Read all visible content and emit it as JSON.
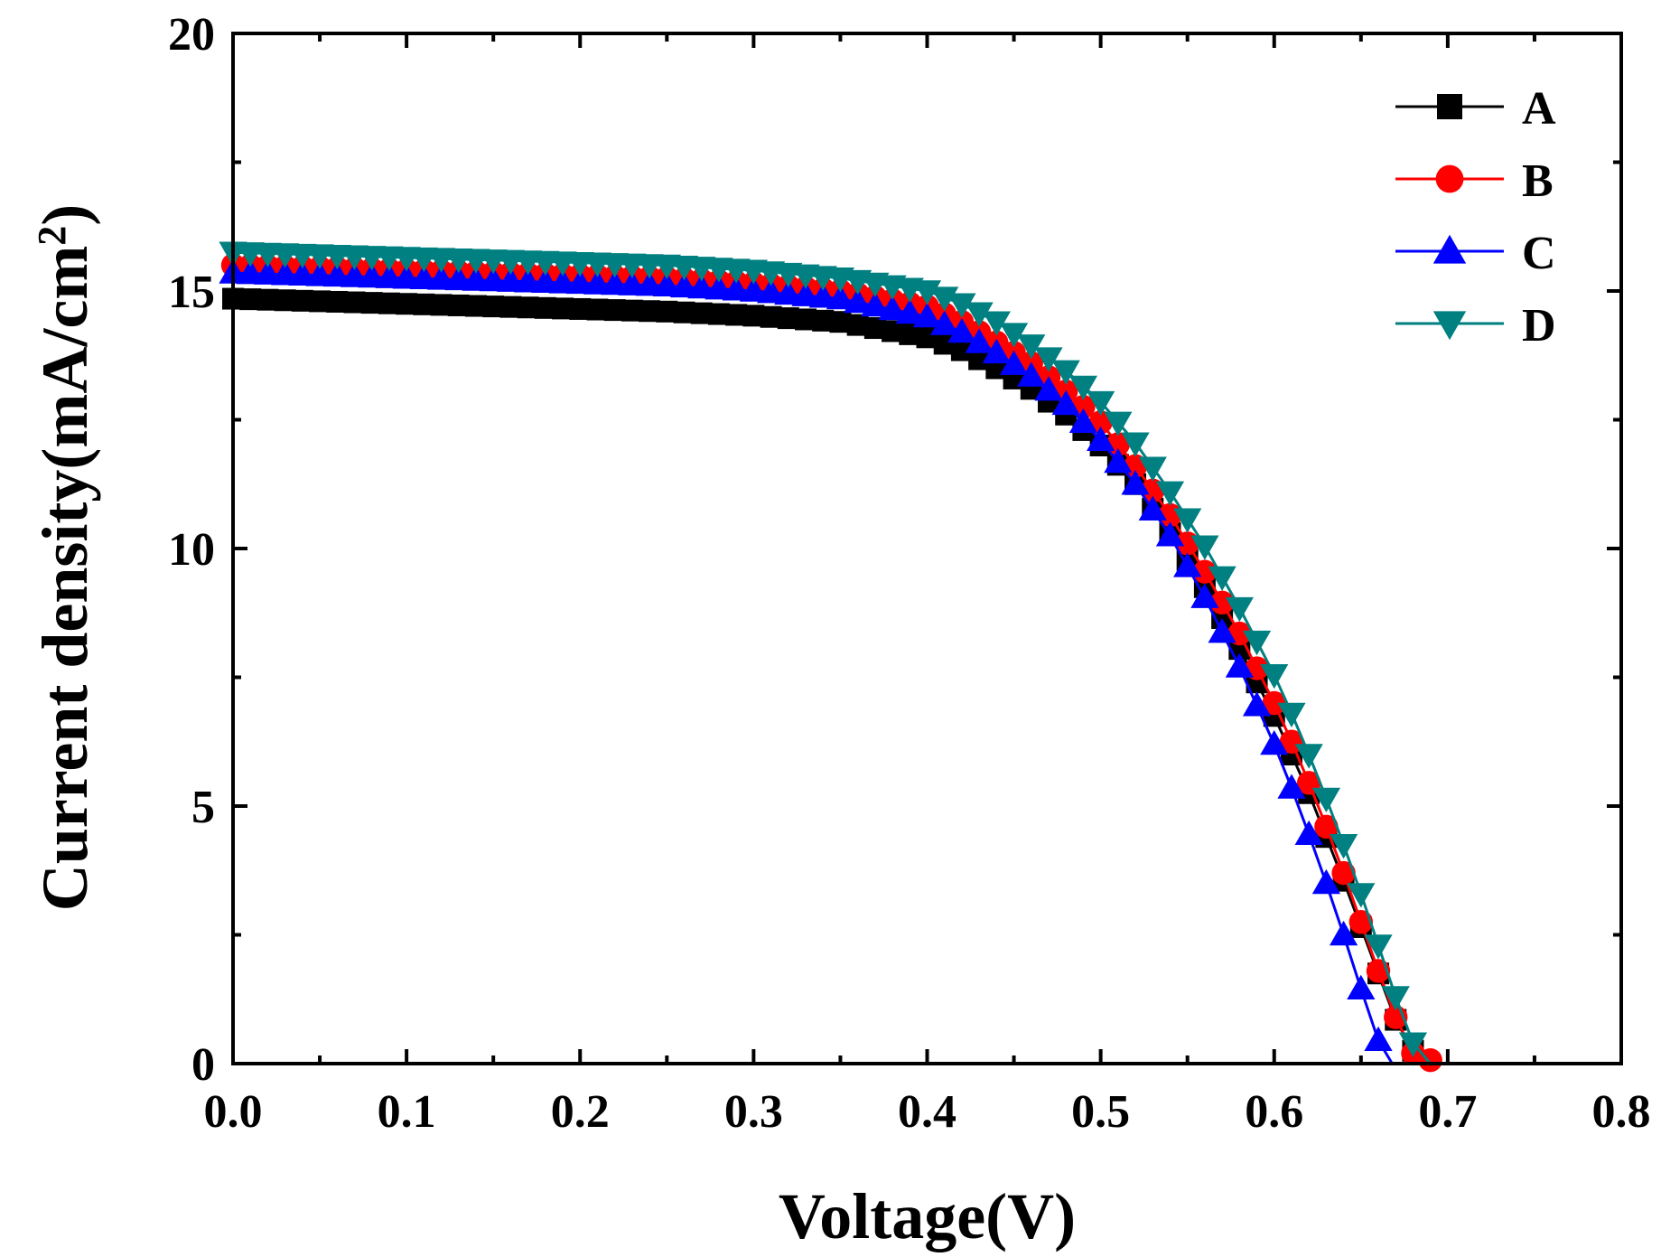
{
  "chart_data": {
    "type": "line",
    "title": "",
    "xlabel": "Voltage(V)",
    "ylabel": "Current density(mA/cm",
    "ylabel_superscript": "2",
    "ylabel_close": ")",
    "xlim": [
      0.0,
      0.8
    ],
    "ylim": [
      0,
      20
    ],
    "xticks": [
      0.0,
      0.1,
      0.2,
      0.3,
      0.4,
      0.5,
      0.6,
      0.7,
      0.8
    ],
    "xtick_labels": [
      "0.0",
      "0.1",
      "0.2",
      "0.3",
      "0.4",
      "0.5",
      "0.6",
      "0.7",
      "0.8"
    ],
    "yticks": [
      0,
      5,
      10,
      15,
      20
    ],
    "ytick_labels": [
      "0",
      "5",
      "10",
      "15",
      "20"
    ],
    "grid": false,
    "legend_position": "top-right",
    "series": [
      {
        "name": "A",
        "color": "#000000",
        "marker": "square",
        "points": [
          [
            0.0,
            14.85
          ],
          [
            0.05,
            14.8
          ],
          [
            0.1,
            14.75
          ],
          [
            0.15,
            14.7
          ],
          [
            0.2,
            14.65
          ],
          [
            0.25,
            14.6
          ],
          [
            0.3,
            14.52
          ],
          [
            0.35,
            14.4
          ],
          [
            0.4,
            14.1
          ],
          [
            0.42,
            13.85
          ],
          [
            0.44,
            13.5
          ],
          [
            0.46,
            13.1
          ],
          [
            0.48,
            12.6
          ],
          [
            0.5,
            12.0
          ],
          [
            0.52,
            11.25
          ],
          [
            0.54,
            10.3
          ],
          [
            0.56,
            9.25
          ],
          [
            0.58,
            8.05
          ],
          [
            0.6,
            6.75
          ],
          [
            0.61,
            6.0
          ],
          [
            0.62,
            5.25
          ],
          [
            0.63,
            4.4
          ],
          [
            0.64,
            3.55
          ],
          [
            0.65,
            2.65
          ],
          [
            0.66,
            1.75
          ],
          [
            0.67,
            0.85
          ],
          [
            0.68,
            0.25
          ],
          [
            0.685,
            0.0
          ]
        ]
      },
      {
        "name": "B",
        "color": "#ff0000",
        "marker": "circle",
        "points": [
          [
            0.0,
            15.5
          ],
          [
            0.05,
            15.45
          ],
          [
            0.1,
            15.4
          ],
          [
            0.15,
            15.35
          ],
          [
            0.2,
            15.3
          ],
          [
            0.25,
            15.25
          ],
          [
            0.3,
            15.15
          ],
          [
            0.35,
            15.0
          ],
          [
            0.4,
            14.7
          ],
          [
            0.42,
            14.4
          ],
          [
            0.44,
            14.0
          ],
          [
            0.46,
            13.6
          ],
          [
            0.48,
            13.05
          ],
          [
            0.5,
            12.45
          ],
          [
            0.52,
            11.6
          ],
          [
            0.54,
            10.65
          ],
          [
            0.56,
            9.55
          ],
          [
            0.58,
            8.35
          ],
          [
            0.6,
            7.0
          ],
          [
            0.61,
            6.25
          ],
          [
            0.62,
            5.45
          ],
          [
            0.63,
            4.6
          ],
          [
            0.64,
            3.7
          ],
          [
            0.65,
            2.75
          ],
          [
            0.66,
            1.8
          ],
          [
            0.67,
            0.9
          ],
          [
            0.68,
            0.2
          ],
          [
            0.695,
            0.0
          ]
        ]
      },
      {
        "name": "C",
        "color": "#0000ff",
        "marker": "triangle-up",
        "points": [
          [
            0.0,
            15.35
          ],
          [
            0.05,
            15.3
          ],
          [
            0.1,
            15.25
          ],
          [
            0.15,
            15.2
          ],
          [
            0.2,
            15.15
          ],
          [
            0.25,
            15.1
          ],
          [
            0.3,
            15.0
          ],
          [
            0.35,
            14.85
          ],
          [
            0.4,
            14.5
          ],
          [
            0.42,
            14.2
          ],
          [
            0.44,
            13.8
          ],
          [
            0.46,
            13.35
          ],
          [
            0.48,
            12.8
          ],
          [
            0.5,
            12.1
          ],
          [
            0.52,
            11.25
          ],
          [
            0.54,
            10.25
          ],
          [
            0.56,
            9.05
          ],
          [
            0.58,
            7.7
          ],
          [
            0.6,
            6.2
          ],
          [
            0.61,
            5.35
          ],
          [
            0.62,
            4.45
          ],
          [
            0.63,
            3.5
          ],
          [
            0.64,
            2.5
          ],
          [
            0.65,
            1.45
          ],
          [
            0.66,
            0.45
          ],
          [
            0.668,
            0.0
          ]
        ]
      },
      {
        "name": "D",
        "color": "#008080",
        "marker": "triangle-down",
        "points": [
          [
            0.0,
            15.75
          ],
          [
            0.05,
            15.7
          ],
          [
            0.1,
            15.65
          ],
          [
            0.15,
            15.6
          ],
          [
            0.2,
            15.55
          ],
          [
            0.25,
            15.5
          ],
          [
            0.3,
            15.4
          ],
          [
            0.35,
            15.25
          ],
          [
            0.4,
            15.0
          ],
          [
            0.42,
            14.75
          ],
          [
            0.44,
            14.4
          ],
          [
            0.46,
            13.95
          ],
          [
            0.48,
            13.45
          ],
          [
            0.5,
            12.85
          ],
          [
            0.52,
            12.05
          ],
          [
            0.54,
            11.1
          ],
          [
            0.56,
            10.05
          ],
          [
            0.58,
            8.85
          ],
          [
            0.6,
            7.55
          ],
          [
            0.61,
            6.8
          ],
          [
            0.62,
            6.0
          ],
          [
            0.63,
            5.15
          ],
          [
            0.64,
            4.25
          ],
          [
            0.65,
            3.3
          ],
          [
            0.66,
            2.3
          ],
          [
            0.67,
            1.3
          ],
          [
            0.68,
            0.4
          ],
          [
            0.69,
            0.0
          ]
        ]
      }
    ]
  }
}
